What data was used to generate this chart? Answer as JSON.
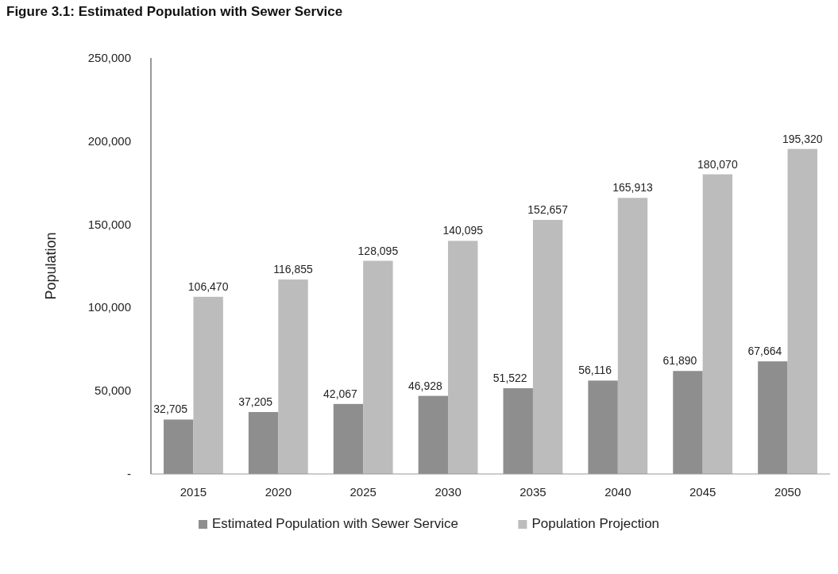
{
  "chart_data": {
    "type": "bar",
    "title": "Figure 3.1: Estimated Population with Sewer Service",
    "ylabel": "Population",
    "categories": [
      "2015",
      "2020",
      "2025",
      "2030",
      "2035",
      "2040",
      "2045",
      "2050"
    ],
    "series": [
      {
        "name": "Estimated Population with Sewer Service",
        "color": "#8e8e8e",
        "values": [
          32705,
          37205,
          42067,
          46928,
          51522,
          56116,
          61890,
          67664
        ],
        "value_labels": [
          "32,705",
          "37,205",
          "42,067",
          "46,928",
          "51,522",
          "56,116",
          "61,890",
          "67,664"
        ]
      },
      {
        "name": "Population Projection",
        "color": "#bcbcbc",
        "values": [
          106470,
          116855,
          128095,
          140095,
          152657,
          165913,
          180070,
          195320
        ],
        "value_labels": [
          "106,470",
          "116,855",
          "128,095",
          "140,095",
          "152,657",
          "165,913",
          "180,070",
          "195,320"
        ]
      }
    ],
    "ylim": [
      0,
      250000
    ],
    "yticks": [
      {
        "value": 0,
        "label": "-"
      },
      {
        "value": 50000,
        "label": "50,000"
      },
      {
        "value": 100000,
        "label": "100,000"
      },
      {
        "value": 150000,
        "label": "150,000"
      },
      {
        "value": 200000,
        "label": "200,000"
      },
      {
        "value": 250000,
        "label": "250,000"
      }
    ],
    "grid": false,
    "legend": "bottom"
  }
}
